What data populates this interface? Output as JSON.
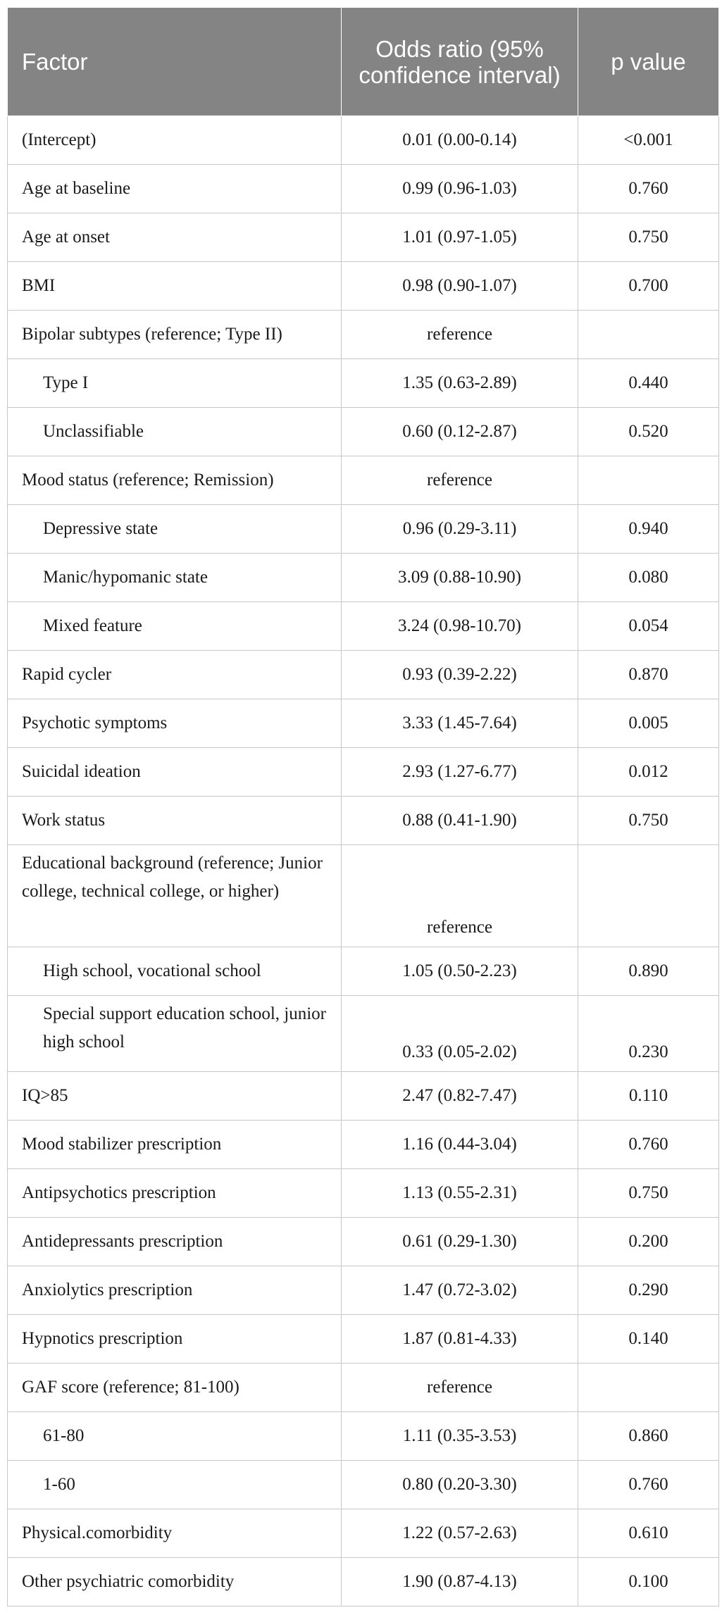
{
  "table": {
    "headers": {
      "factor": "Factor",
      "odds_ratio": "Odds ratio (95% confidence interval)",
      "p_value": "p value"
    },
    "rows": [
      {
        "factor": "(Intercept)",
        "or": "0.01 (0.00-0.14)",
        "p": "<0.001"
      },
      {
        "factor": "Age at baseline",
        "or": "0.99 (0.96-1.03)",
        "p": "0.760"
      },
      {
        "factor": "Age at onset",
        "or": "1.01 (0.97-1.05)",
        "p": "0.750"
      },
      {
        "factor": "BMI",
        "or": "0.98 (0.90-1.07)",
        "p": "0.700"
      },
      {
        "factor": "Bipolar subtypes (reference; Type II)",
        "or": "reference",
        "p": ""
      },
      {
        "factor": "Type I",
        "or": "1.35 (0.63-2.89)",
        "p": "0.440"
      },
      {
        "factor": "Unclassifiable",
        "or": "0.60 (0.12-2.87)",
        "p": "0.520"
      },
      {
        "factor": "Mood status (reference; Remission)",
        "or": "reference",
        "p": ""
      },
      {
        "factor": "Depressive state",
        "or": "0.96 (0.29-3.11)",
        "p": "0.940"
      },
      {
        "factor": "Manic/hypomanic state",
        "or": "3.09 (0.88-10.90)",
        "p": "0.080"
      },
      {
        "factor": "Mixed feature",
        "or": "3.24 (0.98-10.70)",
        "p": "0.054"
      },
      {
        "factor": "Rapid cycler",
        "or": "0.93 (0.39-2.22)",
        "p": "0.870"
      },
      {
        "factor": "Psychotic symptoms",
        "or": "3.33 (1.45-7.64)",
        "p": "0.005"
      },
      {
        "factor": "Suicidal ideation",
        "or": "2.93 (1.27-6.77)",
        "p": "0.012"
      },
      {
        "factor": "Work status",
        "or": "0.88 (0.41-1.90)",
        "p": "0.750"
      },
      {
        "factor": "Educational background (reference; Junior college, technical college, or higher)",
        "or": "reference",
        "p": ""
      },
      {
        "factor": "High school, vocational school",
        "or": "1.05 (0.50-2.23)",
        "p": "0.890"
      },
      {
        "factor": "Special support education school, junior high school",
        "or": "0.33 (0.05-2.02)",
        "p": "0.230"
      },
      {
        "factor": "IQ>85",
        "or": "2.47 (0.82-7.47)",
        "p": "0.110"
      },
      {
        "factor": "Mood stabilizer prescription",
        "or": "1.16 (0.44-3.04)",
        "p": "0.760"
      },
      {
        "factor": "Antipsychotics prescription",
        "or": "1.13 (0.55-2.31)",
        "p": "0.750"
      },
      {
        "factor": "Antidepressants prescription",
        "or": "0.61 (0.29-1.30)",
        "p": "0.200"
      },
      {
        "factor": "Anxiolytics prescription",
        "or": "1.47 (0.72-3.02)",
        "p": "0.290"
      },
      {
        "factor": "Hypnotics prescription",
        "or": "1.87 (0.81-4.33)",
        "p": "0.140"
      },
      {
        "factor": "GAF score (reference; 81-100)",
        "or": "reference",
        "p": ""
      },
      {
        "factor": "61-80",
        "or": "1.11 (0.35-3.53)",
        "p": "0.860"
      },
      {
        "factor": "1-60",
        "or": "0.80 (0.20-3.30)",
        "p": "0.760"
      },
      {
        "factor": "Physical.comorbidity",
        "or": "1.22 (0.57-2.63)",
        "p": "0.610"
      },
      {
        "factor": "Other psychiatric comorbidity",
        "or": "1.90 (0.87-4.13)",
        "p": "0.100"
      }
    ]
  }
}
